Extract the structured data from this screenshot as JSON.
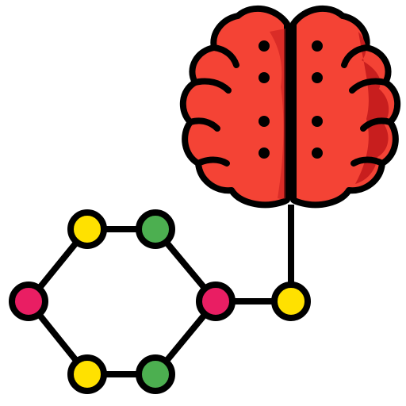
{
  "icon": {
    "name": "brain-molecule-icon",
    "parts": [
      "brain-icon",
      "molecule-ring",
      "connector-line"
    ]
  },
  "colors": {
    "outline": "#000000",
    "brain_fill": "#f44335",
    "brain_shadow": "#c81e1e",
    "node_yellow": "#ffe100",
    "node_green": "#4caf50",
    "node_pink": "#e91e63"
  },
  "nodes": [
    {
      "id": "top-left",
      "color": "node_yellow"
    },
    {
      "id": "top-right",
      "color": "node_green"
    },
    {
      "id": "left",
      "color": "node_pink"
    },
    {
      "id": "right",
      "color": "node_pink"
    },
    {
      "id": "bottom-left",
      "color": "node_yellow"
    },
    {
      "id": "bottom-right",
      "color": "node_green"
    },
    {
      "id": "connector",
      "color": "node_yellow"
    }
  ]
}
